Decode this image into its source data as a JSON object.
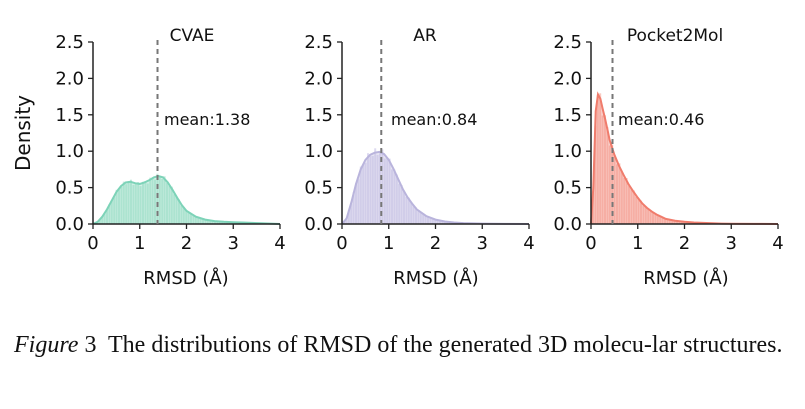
{
  "figure": {
    "ylabel": "Density",
    "panels": [
      {
        "title": "CVAE",
        "mean_label": "mean:1.38",
        "color": "#7dd3b8",
        "fill": "#bfe9da"
      },
      {
        "title": "AR",
        "mean_label": "mean:0.84",
        "color": "#b9b4dc",
        "fill": "#d9d6ee"
      },
      {
        "title": "Pocket2Mol",
        "mean_label": "mean:0.46",
        "color": "#f07c6c",
        "fill": "#f8c4bb"
      }
    ]
  },
  "caption": {
    "label": "Figure",
    "number": "3",
    "text": "The distributions of RMSD of the generated 3D molecu-lar structures."
  },
  "chart_data": [
    {
      "type": "area",
      "title": "CVAE",
      "xlabel": "RMSD (Å)",
      "ylabel": "Density",
      "xlim": [
        0,
        4
      ],
      "ylim": [
        0,
        2.5
      ],
      "xticks": [
        "0",
        "1",
        "2",
        "3",
        "4"
      ],
      "yticks": [
        "0.0",
        "0.5",
        "1.0",
        "1.5",
        "2.0",
        "2.5"
      ],
      "mean": 1.38,
      "x": [
        0,
        0.1,
        0.2,
        0.3,
        0.4,
        0.5,
        0.6,
        0.7,
        0.8,
        0.9,
        1.0,
        1.1,
        1.2,
        1.3,
        1.4,
        1.5,
        1.6,
        1.7,
        1.8,
        1.9,
        2.0,
        2.2,
        2.4,
        2.6,
        2.8,
        3.0,
        3.2,
        3.4,
        3.6,
        3.8,
        4.0
      ],
      "y": [
        0.0,
        0.03,
        0.1,
        0.2,
        0.32,
        0.44,
        0.52,
        0.57,
        0.58,
        0.56,
        0.55,
        0.57,
        0.6,
        0.64,
        0.66,
        0.64,
        0.57,
        0.47,
        0.36,
        0.26,
        0.18,
        0.1,
        0.06,
        0.04,
        0.03,
        0.025,
        0.02,
        0.015,
        0.01,
        0.005,
        0.0
      ]
    },
    {
      "type": "area",
      "title": "AR",
      "xlabel": "RMSD (Å)",
      "ylabel": "",
      "xlim": [
        0,
        4
      ],
      "ylim": [
        0,
        2.5
      ],
      "xticks": [
        "0",
        "1",
        "2",
        "3",
        "4"
      ],
      "yticks": [
        "0.0",
        "0.5",
        "1.0",
        "1.5",
        "2.0",
        "2.5"
      ],
      "mean": 0.84,
      "x": [
        0,
        0.1,
        0.2,
        0.3,
        0.4,
        0.5,
        0.6,
        0.7,
        0.8,
        0.9,
        1.0,
        1.1,
        1.2,
        1.3,
        1.4,
        1.5,
        1.6,
        1.8,
        2.0,
        2.2,
        2.4,
        2.6,
        2.8,
        3.0,
        3.5,
        4.0
      ],
      "y": [
        0.0,
        0.08,
        0.3,
        0.55,
        0.75,
        0.88,
        0.95,
        0.98,
        0.99,
        0.96,
        0.88,
        0.76,
        0.62,
        0.48,
        0.37,
        0.28,
        0.2,
        0.11,
        0.06,
        0.035,
        0.02,
        0.012,
        0.008,
        0.005,
        0.002,
        0.0
      ]
    },
    {
      "type": "area",
      "title": "Pocket2Mol",
      "xlabel": "RMSD (Å)",
      "ylabel": "",
      "xlim": [
        0,
        4
      ],
      "ylim": [
        0,
        2.5
      ],
      "xticks": [
        "0",
        "1",
        "2",
        "3",
        "4"
      ],
      "yticks": [
        "0.0",
        "0.5",
        "1.0",
        "1.5",
        "2.0",
        "2.5"
      ],
      "mean": 0.46,
      "x": [
        0,
        0.05,
        0.1,
        0.15,
        0.2,
        0.25,
        0.3,
        0.35,
        0.4,
        0.5,
        0.6,
        0.7,
        0.8,
        0.9,
        1.0,
        1.1,
        1.2,
        1.3,
        1.4,
        1.5,
        1.6,
        1.8,
        2.0,
        2.2,
        2.4,
        2.6,
        2.8,
        3.0,
        3.5,
        4.0
      ],
      "y": [
        0.0,
        0.5,
        1.55,
        1.78,
        1.72,
        1.58,
        1.45,
        1.3,
        1.15,
        0.95,
        0.8,
        0.67,
        0.55,
        0.45,
        0.36,
        0.28,
        0.22,
        0.17,
        0.13,
        0.1,
        0.07,
        0.045,
        0.03,
        0.02,
        0.015,
        0.01,
        0.006,
        0.004,
        0.002,
        0.0
      ]
    }
  ]
}
